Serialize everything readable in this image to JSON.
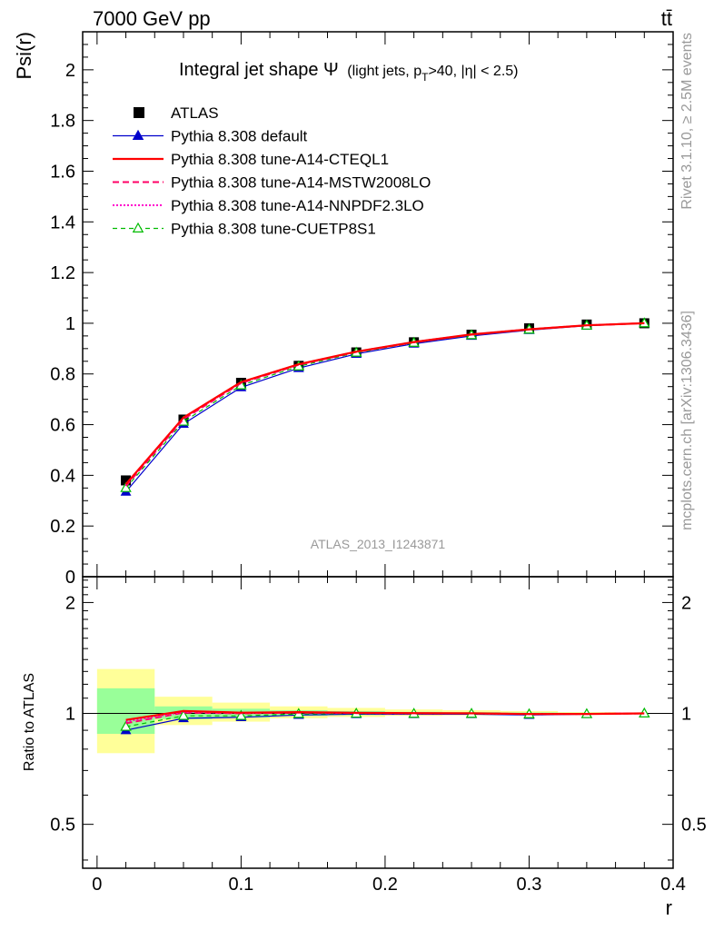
{
  "header": {
    "left": "7000 GeV pp",
    "right": "tt̄"
  },
  "side_text": {
    "rivet": "Rivet 3.1.10, ≥ 2.5M events",
    "mcplots": "mcplots.cern.ch [arXiv:1306.3436]"
  },
  "colors": {
    "atlas": "#000000",
    "default": "#0000cc",
    "cteql1": "#ff0000",
    "mstw": "#ff0066",
    "nnpdf": "#ff00cc",
    "cuetp8s1": "#00bb00",
    "band_inner": "#99ff99",
    "band_outer": "#ffff99"
  },
  "chart_data": [
    {
      "type": "line",
      "panel": "main",
      "title": "Integral jet shape Ψ (light jets, pT>40, |η| < 2.5)",
      "title_parts": {
        "main": "Integral jet shape",
        "psi": "Ψ",
        "detail_a": "(light jets, p",
        "detail_sub": "T",
        "detail_b": ">40, |η| < 2.5)"
      },
      "ylabel": "Psi(r)",
      "xlabel": "r",
      "watermark": "ATLAS_2013_I1243871",
      "xlim": [
        -0.01,
        0.4
      ],
      "ylim": [
        0,
        2.15
      ],
      "y_ticks": [
        "0",
        "0.2",
        "0.4",
        "0.6",
        "0.8",
        "1",
        "1.2",
        "1.4",
        "1.6",
        "1.8",
        "2"
      ],
      "x_ticks": [
        "0",
        "0.1",
        "0.2",
        "0.3",
        "0.4"
      ],
      "legend_position": "top-left",
      "x": [
        0.02,
        0.06,
        0.1,
        0.14,
        0.18,
        0.22,
        0.26,
        0.3,
        0.34,
        0.38
      ],
      "series": [
        {
          "name": "ATLAS",
          "key": "atlas",
          "style": "square",
          "values": [
            0.38,
            0.62,
            0.765,
            0.832,
            0.885,
            0.925,
            0.955,
            0.98,
            0.995,
            1.0
          ]
        },
        {
          "name": "Pythia 8.308 default",
          "key": "default",
          "style": "line-triangle",
          "values": [
            0.335,
            0.603,
            0.747,
            0.823,
            0.879,
            0.919,
            0.95,
            0.973,
            0.99,
            1.0
          ]
        },
        {
          "name": "Pythia 8.308 tune-A14-CTEQL1",
          "key": "cteql1",
          "style": "solid",
          "values": [
            0.365,
            0.628,
            0.768,
            0.838,
            0.888,
            0.926,
            0.956,
            0.976,
            0.992,
            1.0
          ]
        },
        {
          "name": "Pythia 8.308 tune-A14-MSTW2008LO",
          "key": "mstw",
          "style": "dashed",
          "values": [
            0.358,
            0.622,
            0.764,
            0.836,
            0.887,
            0.925,
            0.955,
            0.976,
            0.992,
            1.0
          ]
        },
        {
          "name": "Pythia 8.308 tune-A14-NNPDF2.3LO",
          "key": "nnpdf",
          "style": "dotted",
          "values": [
            0.362,
            0.626,
            0.766,
            0.837,
            0.888,
            0.926,
            0.956,
            0.976,
            0.992,
            1.0
          ]
        },
        {
          "name": "Pythia 8.308 tune-CUETP8S1",
          "key": "cuetp8s1",
          "style": "dashed-open-triangle",
          "values": [
            0.35,
            0.612,
            0.755,
            0.83,
            0.884,
            0.923,
            0.953,
            0.975,
            0.991,
            1.0
          ]
        }
      ]
    },
    {
      "type": "line",
      "panel": "ratio",
      "ylabel": "Ratio to ATLAS",
      "xlabel": "r",
      "xlim": [
        -0.01,
        0.4
      ],
      "ylim": [
        0.38,
        2.35
      ],
      "y_scale": "log",
      "y_ticks": [
        "0.5",
        "1",
        "2"
      ],
      "x_ticks": [
        "0",
        "0.1",
        "0.2",
        "0.3",
        "0.4"
      ],
      "x": [
        0.02,
        0.06,
        0.1,
        0.14,
        0.18,
        0.22,
        0.26,
        0.3,
        0.34,
        0.38
      ],
      "bands": {
        "x_edges": [
          0.0,
          0.04,
          0.08,
          0.12,
          0.16,
          0.2,
          0.24,
          0.28,
          0.32,
          0.36,
          0.4
        ],
        "inner": [
          [
            0.88,
            1.17
          ],
          [
            0.965,
            1.045
          ],
          [
            0.975,
            1.03
          ],
          [
            0.985,
            1.02
          ],
          [
            0.99,
            1.015
          ],
          [
            0.992,
            1.01
          ],
          [
            0.994,
            1.008
          ],
          [
            0.995,
            1.006
          ],
          [
            0.997,
            1.004
          ],
          [
            0.999,
            1.001
          ]
        ],
        "outer": [
          [
            0.78,
            1.32
          ],
          [
            0.93,
            1.11
          ],
          [
            0.95,
            1.07
          ],
          [
            0.97,
            1.045
          ],
          [
            0.978,
            1.035
          ],
          [
            0.985,
            1.025
          ],
          [
            0.988,
            1.02
          ],
          [
            0.99,
            1.015
          ],
          [
            0.995,
            1.008
          ],
          [
            0.998,
            1.003
          ]
        ]
      },
      "series": [
        {
          "name": "Pythia 8.308 default",
          "key": "default",
          "style": "line-triangle",
          "values": [
            0.9,
            0.97,
            0.976,
            0.99,
            0.995,
            0.995,
            0.995,
            0.99,
            0.995,
            1.0
          ]
        },
        {
          "name": "Pythia 8.308 tune-A14-CTEQL1",
          "key": "cteql1",
          "style": "solid",
          "values": [
            0.96,
            1.015,
            1.005,
            1.008,
            1.004,
            1.002,
            1.001,
            0.996,
            0.997,
            1.0
          ]
        },
        {
          "name": "Pythia 8.308 tune-A14-MSTW2008LO",
          "key": "mstw",
          "style": "dashed",
          "values": [
            0.94,
            1.005,
            1.0,
            1.005,
            1.002,
            1.0,
            1.0,
            0.996,
            0.997,
            1.0
          ]
        },
        {
          "name": "Pythia 8.308 tune-A14-NNPDF2.3LO",
          "key": "nnpdf",
          "style": "dotted",
          "values": [
            0.95,
            1.01,
            1.002,
            1.006,
            1.003,
            1.001,
            1.0,
            0.996,
            0.997,
            1.0
          ]
        },
        {
          "name": "Pythia 8.308 tune-CUETP8S1",
          "key": "cuetp8s1",
          "style": "dashed-open-triangle",
          "values": [
            0.92,
            0.985,
            0.985,
            0.997,
            0.999,
            0.998,
            0.998,
            0.995,
            0.996,
            1.0
          ]
        }
      ]
    }
  ]
}
